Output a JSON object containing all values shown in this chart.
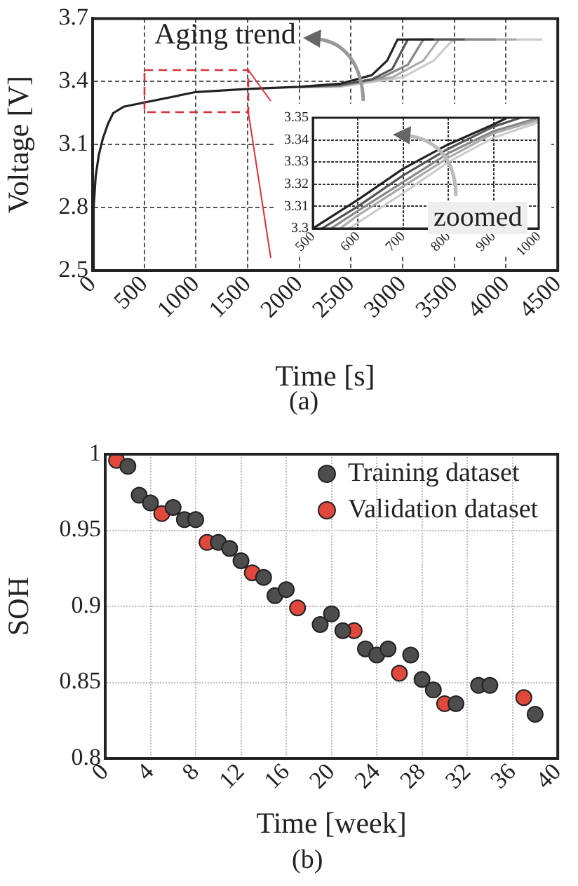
{
  "chart_data": [
    {
      "type": "line",
      "xlabel": "Time [s]",
      "ylabel": "Voltage [V]",
      "xlim": [
        0,
        4500
      ],
      "xticks": [
        0,
        500,
        1000,
        1500,
        2000,
        2500,
        3000,
        3500,
        4000,
        4500
      ],
      "ylim": [
        2.5,
        3.7
      ],
      "yticks": [
        2.5,
        2.8,
        3.1,
        3.4,
        3.7
      ],
      "grid": true,
      "marker": "none",
      "line_style": "solid",
      "annotations": [
        "Aging trend",
        "(a)"
      ],
      "series": [
        {
          "color": "#222222",
          "x": [
            0,
            10,
            30,
            60,
            100,
            150,
            200,
            300,
            500,
            1000,
            1500,
            2000,
            2400,
            2700,
            2850,
            2950,
            3300
          ],
          "values": [
            2.5,
            2.8,
            2.95,
            3.05,
            3.13,
            3.2,
            3.25,
            3.28,
            3.3,
            3.35,
            3.365,
            3.375,
            3.39,
            3.43,
            3.5,
            3.6,
            3.6
          ]
        },
        {
          "color": "#555555",
          "x": [
            2000,
            2400,
            2700,
            2900,
            3050,
            3600
          ],
          "values": [
            3.375,
            3.385,
            3.41,
            3.46,
            3.6,
            3.6
          ]
        },
        {
          "color": "#888888",
          "x": [
            2000,
            2400,
            2800,
            3050,
            3200,
            3900
          ],
          "values": [
            3.374,
            3.38,
            3.42,
            3.48,
            3.6,
            3.6
          ]
        },
        {
          "color": "#aaaaaa",
          "x": [
            2000,
            2400,
            2900,
            3200,
            3350,
            4100
          ],
          "values": [
            3.373,
            3.38,
            3.42,
            3.5,
            3.6,
            3.6
          ]
        },
        {
          "color": "#cccccc",
          "x": [
            2000,
            2400,
            3000,
            3300,
            3450,
            3500,
            4350
          ],
          "values": [
            3.372,
            3.375,
            3.42,
            3.5,
            3.58,
            3.6,
            3.6
          ]
        }
      ]
    },
    {
      "type": "line",
      "xlim": [
        500,
        1000
      ],
      "xticks": [
        500,
        600,
        700,
        800,
        900,
        1000
      ],
      "ylim": [
        3.3,
        3.35
      ],
      "yticks": [
        3.3,
        3.31,
        3.32,
        3.33,
        3.34,
        3.35
      ],
      "grid": true,
      "marker": "none",
      "line_style": "solid",
      "annotations": [
        "zoomed"
      ],
      "series": [
        {
          "color": "#222222",
          "x": [
            500,
            600,
            700,
            800,
            900,
            930
          ],
          "values": [
            3.3,
            3.313,
            3.327,
            3.338,
            3.347,
            3.35
          ]
        },
        {
          "color": "#555555",
          "x": [
            520,
            600,
            700,
            800,
            900,
            960
          ],
          "values": [
            3.3,
            3.31,
            3.324,
            3.336,
            3.346,
            3.35
          ]
        },
        {
          "color": "#888888",
          "x": [
            540,
            600,
            700,
            800,
            900,
            1000
          ],
          "values": [
            3.3,
            3.308,
            3.321,
            3.334,
            3.344,
            3.35
          ]
        },
        {
          "color": "#aaaaaa",
          "x": [
            560,
            600,
            700,
            800,
            900,
            1000
          ],
          "values": [
            3.3,
            3.306,
            3.319,
            3.332,
            3.343,
            3.349
          ]
        },
        {
          "color": "#cccccc",
          "x": [
            580,
            700,
            800,
            900,
            1000
          ],
          "values": [
            3.3,
            3.316,
            3.33,
            3.341,
            3.348
          ]
        }
      ]
    },
    {
      "type": "scatter",
      "xlabel": "Time [week]",
      "ylabel": "SOH",
      "xlim": [
        0,
        40
      ],
      "xticks": [
        0,
        4,
        8,
        12,
        16,
        20,
        24,
        28,
        32,
        36,
        40
      ],
      "ylim": [
        0.8,
        1
      ],
      "yticks": [
        0.8,
        0.85,
        0.9,
        0.95,
        1
      ],
      "grid": true,
      "legend": "top right",
      "marker": "circle",
      "annotations": [
        "(b)"
      ],
      "series": [
        {
          "name": "Training dataset",
          "color": "#4d4d4d",
          "x": [
            2,
            3,
            4,
            6,
            7,
            8,
            10,
            11,
            12,
            14,
            15,
            16,
            19,
            20,
            21,
            23,
            24,
            25,
            27,
            28,
            29,
            31,
            33,
            34,
            38
          ],
          "values": [
            0.992,
            0.973,
            0.968,
            0.965,
            0.957,
            0.957,
            0.942,
            0.938,
            0.93,
            0.919,
            0.907,
            0.911,
            0.888,
            0.895,
            0.884,
            0.872,
            0.868,
            0.872,
            0.868,
            0.852,
            0.845,
            0.836,
            0.848,
            0.848,
            0.829
          ]
        },
        {
          "name": "Validation dataset",
          "color": "#e0483c",
          "x": [
            1,
            5,
            9,
            13,
            17,
            22,
            26,
            30,
            37
          ],
          "values": [
            0.996,
            0.961,
            0.942,
            0.922,
            0.899,
            0.884,
            0.856,
            0.836,
            0.84
          ]
        }
      ]
    }
  ]
}
